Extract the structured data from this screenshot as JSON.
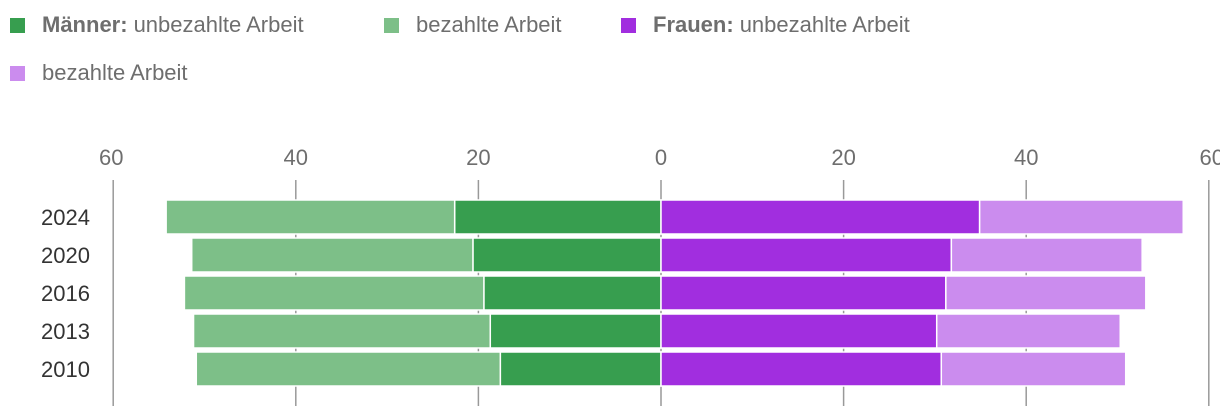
{
  "legend": {
    "men_group": "Männer:",
    "women_group": "Frauen:",
    "men_unpaid": "unbezahlte Arbeit",
    "men_paid": "bezahlte Arbeit",
    "women_unpaid": "unbezahlte Arbeit",
    "women_paid": "bezahlte Arbeit"
  },
  "colors": {
    "men_unpaid": "#379e4f",
    "men_paid": "#7dbf88",
    "women_unpaid": "#a12edf",
    "women_paid": "#cb8cee",
    "axis": "#999999"
  },
  "chart_data": {
    "type": "bar",
    "orientation": "horizontal",
    "layout": "diverging-stacked",
    "categories": [
      "2024",
      "2020",
      "2016",
      "2013",
      "2010"
    ],
    "series": [
      {
        "name": "Männer: unbezahlte Arbeit",
        "side": "left",
        "values": [
          22.6,
          20.6,
          19.4,
          18.7,
          17.6
        ]
      },
      {
        "name": "bezahlte Arbeit",
        "side": "left",
        "values": [
          31.6,
          30.8,
          32.8,
          32.5,
          33.3
        ]
      },
      {
        "name": "Frauen: unbezahlte Arbeit",
        "side": "right",
        "values": [
          34.9,
          31.8,
          31.2,
          30.2,
          30.7
        ]
      },
      {
        "name": "bezahlte Arbeit",
        "side": "right",
        "values": [
          22.3,
          20.9,
          21.9,
          20.1,
          20.2
        ]
      }
    ],
    "x_ticks": [
      60,
      40,
      20,
      0,
      20,
      40,
      60
    ],
    "xlim": [
      -60,
      60
    ],
    "grid": true,
    "legend_position": "top-left"
  }
}
